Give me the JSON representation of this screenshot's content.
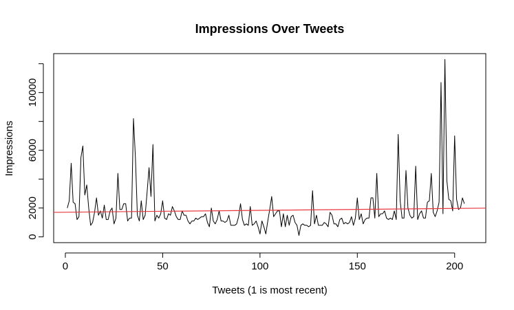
{
  "chart_data": {
    "type": "line",
    "title": "Impressions Over Tweets",
    "xlabel": "Tweets (1 is most recent)",
    "ylabel": "Impressions",
    "xlim": [
      -6,
      216
    ],
    "ylim": [
      -400,
      12700
    ],
    "x_ticks": [
      0,
      50,
      100,
      150,
      200
    ],
    "y_ticks": [
      0,
      2000,
      4000,
      6000,
      8000,
      10000,
      12000
    ],
    "y_tick_labels": [
      "0",
      "2000",
      "",
      "6000",
      "",
      "10000",
      ""
    ],
    "grid": false,
    "series": [
      {
        "type": "line",
        "color": "#000000",
        "values": [
          2000,
          2500,
          5100,
          2400,
          2300,
          1200,
          1400,
          5500,
          6300,
          2900,
          3600,
          2000,
          800,
          1000,
          1700,
          2700,
          1500,
          1800,
          1300,
          2200,
          1200,
          1200,
          1800,
          2000,
          900,
          1300,
          4400,
          1900,
          1900,
          2300,
          2300,
          1100,
          1300,
          1300,
          8200,
          5500,
          1500,
          1100,
          2500,
          1200,
          1500,
          3100,
          4800,
          2800,
          6400,
          1100,
          1500,
          1300,
          1600,
          2500,
          1300,
          1200,
          1600,
          1500,
          2100,
          1800,
          1400,
          1200,
          1200,
          1800,
          1500,
          1500,
          1100,
          900,
          1100,
          1100,
          1300,
          1200,
          1300,
          1400,
          1400,
          1600,
          1000,
          700,
          2000,
          1100,
          900,
          1200,
          1800,
          1100,
          1100,
          1000,
          1100,
          1500,
          800,
          800,
          800,
          900,
          1400,
          2300,
          1200,
          800,
          900,
          800,
          2100,
          800,
          900,
          1100,
          700,
          200,
          1100,
          700,
          200,
          1100,
          1900,
          2800,
          1400,
          1600,
          1800,
          1800,
          700,
          1600,
          700,
          1500,
          800,
          1400,
          1500,
          1000,
          800,
          100,
          800,
          900,
          800,
          800,
          700,
          800,
          3200,
          900,
          1500,
          800,
          800,
          800,
          1000,
          900,
          700,
          1700,
          1500,
          900,
          900,
          700,
          1200,
          1300,
          900,
          1000,
          900,
          1000,
          1400,
          800,
          1300,
          2700,
          1200,
          1600,
          900,
          1200,
          1300,
          1300,
          2700,
          2700,
          1300,
          4400,
          1400,
          1600,
          1600,
          1800,
          1300,
          1200,
          1300,
          1200,
          1800,
          1200,
          7100,
          2500,
          1300,
          1300,
          4600,
          2000,
          1500,
          1300,
          1400,
          4900,
          1200,
          1600,
          1800,
          1300,
          1300,
          2400,
          2500,
          4400,
          1700,
          1400,
          1800,
          2400,
          10700,
          1600,
          12300,
          3900,
          2600,
          2500,
          1800,
          7000,
          2600,
          1900,
          2000,
          2700,
          2300
        ]
      },
      {
        "type": "line",
        "color": "#e8373f",
        "x": [
          -6,
          216
        ],
        "values": [
          1700,
          1990
        ]
      }
    ]
  }
}
